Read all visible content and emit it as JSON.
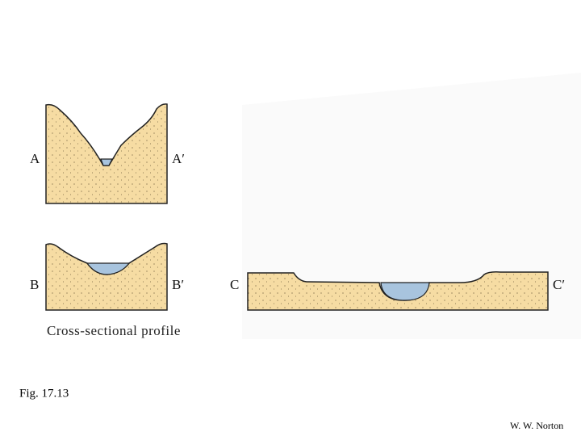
{
  "diagram": {
    "profiles": [
      {
        "left_label": "A",
        "right_label": "A′"
      },
      {
        "left_label": "B",
        "right_label": "B′"
      },
      {
        "left_label": "C",
        "right_label": "C′"
      }
    ],
    "caption": "Cross-sectional profile",
    "figure_label": "Fig. 17.13",
    "credit": "W. W. Norton"
  }
}
